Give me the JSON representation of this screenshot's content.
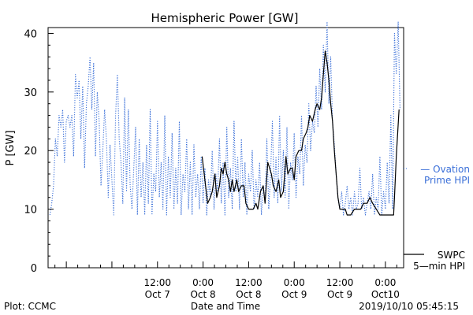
{
  "chart_data": {
    "type": "line",
    "title": "Hemispheric Power [GW]",
    "xlabel": "Date and Time",
    "ylabel": "P [GW]",
    "ylim": [
      0,
      41
    ],
    "xlim": [
      -1.7,
      2.2
    ],
    "x_units": "days from 2019-10-08 00:00 UT",
    "yticks": [
      0,
      10,
      20,
      30,
      40
    ],
    "xticks": [
      {
        "x": -0.5,
        "line1": "12:00",
        "line2": "Oct 7"
      },
      {
        "x": 0.0,
        "line1": "0:00",
        "line2": "Oct 8"
      },
      {
        "x": 0.5,
        "line1": "12:00",
        "line2": "Oct 8"
      },
      {
        "x": 1.0,
        "line1": "0:00",
        "line2": "Oct 9"
      },
      {
        "x": 1.5,
        "line1": "12:00",
        "line2": "Oct 9"
      },
      {
        "x": 2.0,
        "line1": "0:00",
        "line2": "Oct10"
      }
    ],
    "series": [
      {
        "name": "Ovation Prime HPI",
        "legend": [
          "— Ovation",
          "Prime HPI"
        ],
        "color": "#3a6fd8",
        "style": "dotted",
        "points": [
          [
            -1.68,
            9
          ],
          [
            -1.66,
            11
          ],
          [
            -1.64,
            14
          ],
          [
            -1.62,
            22
          ],
          [
            -1.6,
            19
          ],
          [
            -1.58,
            26
          ],
          [
            -1.56,
            24
          ],
          [
            -1.54,
            27
          ],
          [
            -1.52,
            18
          ],
          [
            -1.5,
            25
          ],
          [
            -1.48,
            26
          ],
          [
            -1.46,
            24
          ],
          [
            -1.44,
            26
          ],
          [
            -1.42,
            19
          ],
          [
            -1.4,
            33
          ],
          [
            -1.38,
            29
          ],
          [
            -1.36,
            32
          ],
          [
            -1.34,
            22
          ],
          [
            -1.32,
            31
          ],
          [
            -1.3,
            17
          ],
          [
            -1.28,
            28
          ],
          [
            -1.26,
            31
          ],
          [
            -1.24,
            36
          ],
          [
            -1.22,
            27
          ],
          [
            -1.2,
            35
          ],
          [
            -1.18,
            19
          ],
          [
            -1.16,
            30
          ],
          [
            -1.14,
            25
          ],
          [
            -1.12,
            14
          ],
          [
            -1.1,
            20
          ],
          [
            -1.08,
            27
          ],
          [
            -1.06,
            22
          ],
          [
            -1.04,
            12
          ],
          [
            -1.02,
            21
          ],
          [
            -1.0,
            15
          ],
          [
            -0.98,
            9
          ],
          [
            -0.96,
            26
          ],
          [
            -0.94,
            33
          ],
          [
            -0.92,
            22
          ],
          [
            -0.9,
            18
          ],
          [
            -0.88,
            11
          ],
          [
            -0.86,
            29
          ],
          [
            -0.84,
            13
          ],
          [
            -0.82,
            27
          ],
          [
            -0.8,
            14
          ],
          [
            -0.78,
            10
          ],
          [
            -0.76,
            17
          ],
          [
            -0.74,
            24
          ],
          [
            -0.72,
            9
          ],
          [
            -0.7,
            22
          ],
          [
            -0.68,
            12
          ],
          [
            -0.66,
            18
          ],
          [
            -0.64,
            9
          ],
          [
            -0.62,
            21
          ],
          [
            -0.6,
            11
          ],
          [
            -0.58,
            27
          ],
          [
            -0.56,
            9
          ],
          [
            -0.54,
            16
          ],
          [
            -0.52,
            13
          ],
          [
            -0.5,
            25
          ],
          [
            -0.48,
            12
          ],
          [
            -0.46,
            18
          ],
          [
            -0.44,
            10
          ],
          [
            -0.42,
            26
          ],
          [
            -0.4,
            9
          ],
          [
            -0.38,
            19
          ],
          [
            -0.36,
            12
          ],
          [
            -0.34,
            23
          ],
          [
            -0.32,
            10
          ],
          [
            -0.3,
            17
          ],
          [
            -0.28,
            11
          ],
          [
            -0.26,
            25
          ],
          [
            -0.24,
            9
          ],
          [
            -0.22,
            16
          ],
          [
            -0.2,
            13
          ],
          [
            -0.18,
            22
          ],
          [
            -0.16,
            10
          ],
          [
            -0.14,
            18
          ],
          [
            -0.12,
            9
          ],
          [
            -0.1,
            21
          ],
          [
            -0.08,
            12
          ],
          [
            -0.06,
            16
          ],
          [
            -0.04,
            10
          ],
          [
            -0.02,
            19
          ],
          [
            0.0,
            11
          ],
          [
            0.02,
            17
          ],
          [
            0.04,
            9
          ],
          [
            0.06,
            15
          ],
          [
            0.08,
            12
          ],
          [
            0.1,
            20
          ],
          [
            0.12,
            10
          ],
          [
            0.14,
            16
          ],
          [
            0.16,
            13
          ],
          [
            0.18,
            22
          ],
          [
            0.2,
            11
          ],
          [
            0.22,
            18
          ],
          [
            0.24,
            9
          ],
          [
            0.26,
            24
          ],
          [
            0.28,
            12
          ],
          [
            0.3,
            17
          ],
          [
            0.32,
            10
          ],
          [
            0.34,
            25
          ],
          [
            0.36,
            13
          ],
          [
            0.38,
            19
          ],
          [
            0.4,
            10
          ],
          [
            0.42,
            22
          ],
          [
            0.44,
            12
          ],
          [
            0.46,
            18
          ],
          [
            0.48,
            9
          ],
          [
            0.5,
            16
          ],
          [
            0.52,
            13
          ],
          [
            0.54,
            20
          ],
          [
            0.56,
            10
          ],
          [
            0.58,
            15
          ],
          [
            0.6,
            12
          ],
          [
            0.62,
            18
          ],
          [
            0.64,
            9
          ],
          [
            0.66,
            14
          ],
          [
            0.68,
            11
          ],
          [
            0.7,
            22
          ],
          [
            0.72,
            10
          ],
          [
            0.74,
            16
          ],
          [
            0.76,
            25
          ],
          [
            0.78,
            12
          ],
          [
            0.8,
            19
          ],
          [
            0.82,
            11
          ],
          [
            0.84,
            26
          ],
          [
            0.86,
            13
          ],
          [
            0.88,
            20
          ],
          [
            0.9,
            12
          ],
          [
            0.92,
            24
          ],
          [
            0.94,
            10
          ],
          [
            0.96,
            18
          ],
          [
            0.98,
            15
          ],
          [
            1.0,
            23
          ],
          [
            1.02,
            12
          ],
          [
            1.04,
            19
          ],
          [
            1.06,
            16
          ],
          [
            1.08,
            26
          ],
          [
            1.1,
            14
          ],
          [
            1.12,
            21
          ],
          [
            1.14,
            18
          ],
          [
            1.16,
            28
          ],
          [
            1.18,
            20
          ],
          [
            1.2,
            25
          ],
          [
            1.22,
            23
          ],
          [
            1.24,
            31
          ],
          [
            1.26,
            24
          ],
          [
            1.28,
            34
          ],
          [
            1.3,
            27
          ],
          [
            1.32,
            38
          ],
          [
            1.34,
            30
          ],
          [
            1.36,
            42
          ],
          [
            1.38,
            28
          ],
          [
            1.4,
            36
          ],
          [
            1.42,
            25
          ],
          [
            1.44,
            21
          ],
          [
            1.46,
            16
          ],
          [
            1.48,
            12
          ],
          [
            1.5,
            10
          ],
          [
            1.52,
            13
          ],
          [
            1.54,
            9
          ],
          [
            1.56,
            11
          ],
          [
            1.58,
            14
          ],
          [
            1.6,
            10
          ],
          [
            1.62,
            12
          ],
          [
            1.64,
            9
          ],
          [
            1.66,
            13
          ],
          [
            1.68,
            10
          ],
          [
            1.7,
            11
          ],
          [
            1.72,
            17
          ],
          [
            1.74,
            10
          ],
          [
            1.76,
            12
          ],
          [
            1.78,
            9
          ],
          [
            1.8,
            11
          ],
          [
            1.82,
            13
          ],
          [
            1.84,
            10
          ],
          [
            1.86,
            16
          ],
          [
            1.88,
            9
          ],
          [
            1.9,
            12
          ],
          [
            1.92,
            10
          ],
          [
            1.94,
            19
          ],
          [
            1.96,
            9
          ],
          [
            1.98,
            13
          ],
          [
            2.0,
            10
          ],
          [
            2.02,
            18
          ],
          [
            2.04,
            11
          ],
          [
            2.06,
            26
          ],
          [
            2.08,
            10
          ],
          [
            2.1,
            40
          ],
          [
            2.12,
            33
          ],
          [
            2.14,
            42
          ],
          [
            2.16,
            27
          ]
        ]
      },
      {
        "name": "SWPC 5-min HPI",
        "legend": [
          "SWPC",
          "5—min HPI"
        ],
        "color": "#000000",
        "style": "solid",
        "points": [
          [
            -0.01,
            19
          ],
          [
            0.02,
            15
          ],
          [
            0.05,
            11
          ],
          [
            0.08,
            12
          ],
          [
            0.1,
            13
          ],
          [
            0.13,
            16
          ],
          [
            0.15,
            12
          ],
          [
            0.18,
            14
          ],
          [
            0.2,
            17
          ],
          [
            0.22,
            16
          ],
          [
            0.24,
            18
          ],
          [
            0.26,
            16
          ],
          [
            0.28,
            15
          ],
          [
            0.3,
            13
          ],
          [
            0.32,
            15
          ],
          [
            0.34,
            13
          ],
          [
            0.37,
            15
          ],
          [
            0.39,
            13
          ],
          [
            0.42,
            14
          ],
          [
            0.45,
            14
          ],
          [
            0.47,
            11
          ],
          [
            0.5,
            10
          ],
          [
            0.55,
            10
          ],
          [
            0.58,
            11
          ],
          [
            0.6,
            10
          ],
          [
            0.63,
            13
          ],
          [
            0.66,
            14
          ],
          [
            0.68,
            11
          ],
          [
            0.71,
            18
          ],
          [
            0.73,
            17
          ],
          [
            0.75,
            16
          ],
          [
            0.77,
            14
          ],
          [
            0.8,
            13
          ],
          [
            0.83,
            15
          ],
          [
            0.85,
            12
          ],
          [
            0.88,
            13
          ],
          [
            0.91,
            19
          ],
          [
            0.93,
            16
          ],
          [
            0.96,
            17
          ],
          [
            0.98,
            17
          ],
          [
            1.0,
            15
          ],
          [
            1.02,
            19
          ],
          [
            1.05,
            20
          ],
          [
            1.08,
            20
          ],
          [
            1.1,
            22
          ],
          [
            1.13,
            23
          ],
          [
            1.15,
            24
          ],
          [
            1.17,
            26
          ],
          [
            1.2,
            25
          ],
          [
            1.23,
            27
          ],
          [
            1.25,
            28
          ],
          [
            1.28,
            27
          ],
          [
            1.3,
            29
          ],
          [
            1.32,
            33
          ],
          [
            1.34,
            37
          ],
          [
            1.36,
            35
          ],
          [
            1.38,
            32
          ],
          [
            1.4,
            28
          ],
          [
            1.42,
            25
          ],
          [
            1.44,
            20
          ],
          [
            1.46,
            16
          ],
          [
            1.48,
            12
          ],
          [
            1.5,
            10
          ],
          [
            1.53,
            10
          ],
          [
            1.56,
            10
          ],
          [
            1.58,
            9
          ],
          [
            1.62,
            9
          ],
          [
            1.66,
            10
          ],
          [
            1.7,
            10
          ],
          [
            1.73,
            10
          ],
          [
            1.76,
            11
          ],
          [
            1.8,
            11
          ],
          [
            1.83,
            12
          ],
          [
            1.86,
            11
          ],
          [
            1.9,
            10
          ],
          [
            1.94,
            9
          ],
          [
            1.98,
            9
          ],
          [
            2.02,
            9
          ],
          [
            2.06,
            9
          ],
          [
            2.09,
            9
          ],
          [
            2.1,
            12
          ],
          [
            2.12,
            19
          ],
          [
            2.15,
            27
          ]
        ]
      }
    ],
    "footer": {
      "left": "Plot: CCMC",
      "right": "2019/10/10 05:45:15"
    }
  }
}
